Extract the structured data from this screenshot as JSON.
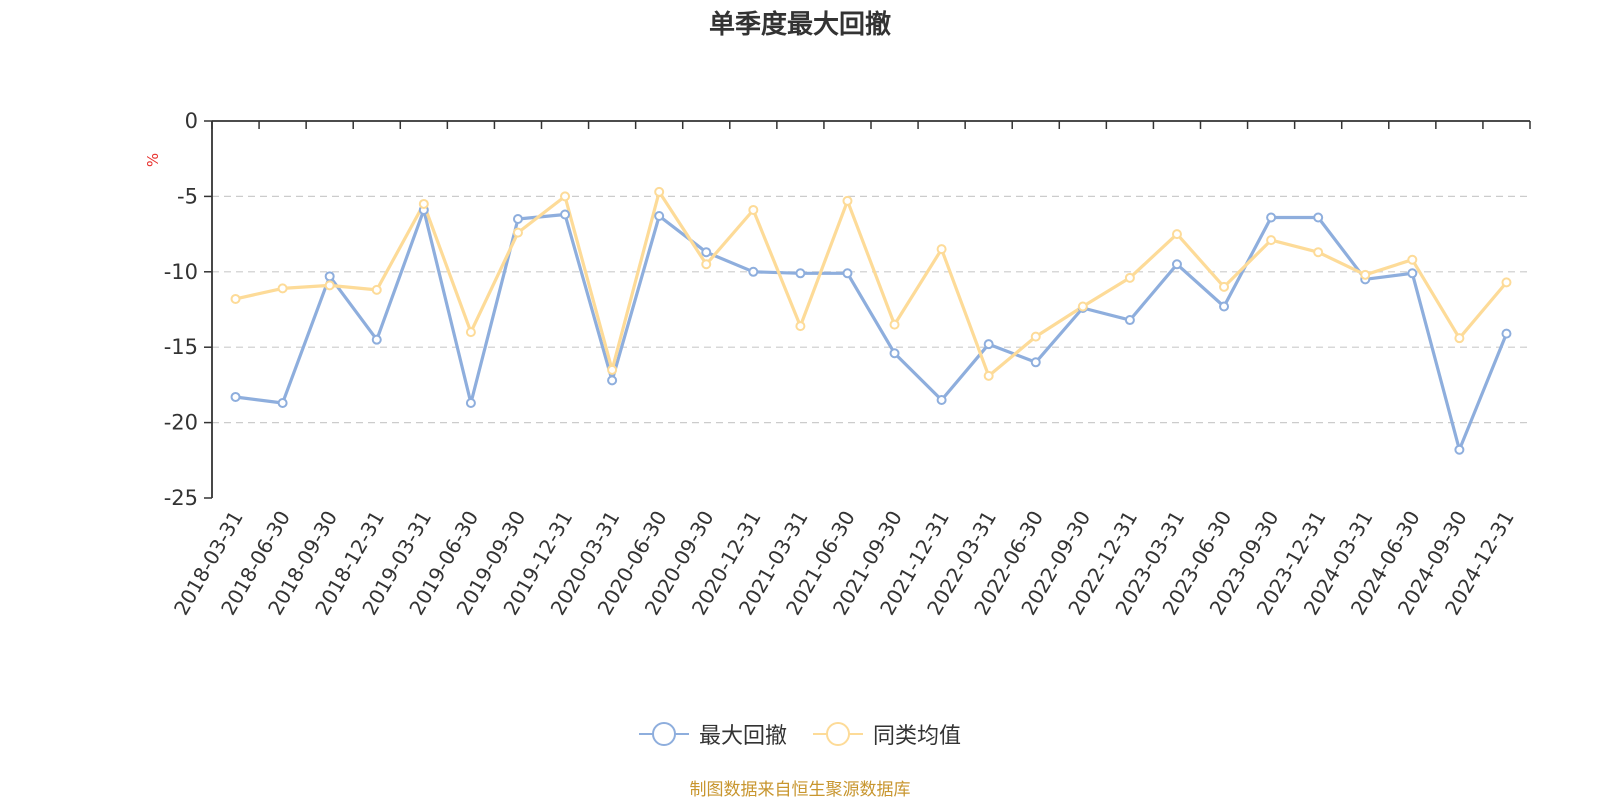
{
  "chart_data": {
    "type": "line",
    "title": "单季度最大回撤",
    "ylabel": "%",
    "xlabel": "",
    "ylim": [
      -25,
      0
    ],
    "yticks": [
      0,
      -5,
      -10,
      -15,
      -20,
      -25
    ],
    "grid": true,
    "legend_position": "bottom-center",
    "categories": [
      "2018-03-31",
      "2018-06-30",
      "2018-09-30",
      "2018-12-31",
      "2019-03-31",
      "2019-06-30",
      "2019-09-30",
      "2019-12-31",
      "2020-03-31",
      "2020-06-30",
      "2020-09-30",
      "2020-12-31",
      "2021-03-31",
      "2021-06-30",
      "2021-09-30",
      "2021-12-31",
      "2022-03-31",
      "2022-06-30",
      "2022-09-30",
      "2022-12-31",
      "2023-03-31",
      "2023-06-30",
      "2023-09-30",
      "2023-12-31",
      "2024-03-31",
      "2024-06-30",
      "2024-09-30",
      "2024-12-31"
    ],
    "series": [
      {
        "name": "最大回撤",
        "color": "#8eaedd",
        "values": [
          -18.3,
          -18.7,
          -10.3,
          -14.5,
          -5.9,
          -18.7,
          -6.5,
          -6.2,
          -17.2,
          -6.3,
          -8.7,
          -10.0,
          -10.1,
          -10.1,
          -15.4,
          -18.5,
          -14.8,
          -16.0,
          -12.4,
          -13.2,
          -9.5,
          -12.3,
          -6.4,
          -6.4,
          -10.5,
          -10.1,
          -21.8,
          -14.1
        ]
      },
      {
        "name": "同类均值",
        "color": "#fddb98",
        "values": [
          -11.8,
          -11.1,
          -10.9,
          -11.2,
          -5.5,
          -14.0,
          -7.4,
          -5.0,
          -16.5,
          -4.7,
          -9.5,
          -5.9,
          -13.6,
          -5.3,
          -13.5,
          -8.5,
          -16.9,
          -14.3,
          -12.3,
          -10.4,
          -7.5,
          -11.0,
          -7.9,
          -8.7,
          -10.2,
          -9.2,
          -14.4,
          -10.7
        ]
      }
    ]
  },
  "footer": {
    "source": "制图数据来自恒生聚源数据库",
    "source_color": "#c8962f"
  },
  "colors": {
    "axis": "#333333",
    "grid": "#cccccc",
    "ylabel": "#e8312e"
  }
}
